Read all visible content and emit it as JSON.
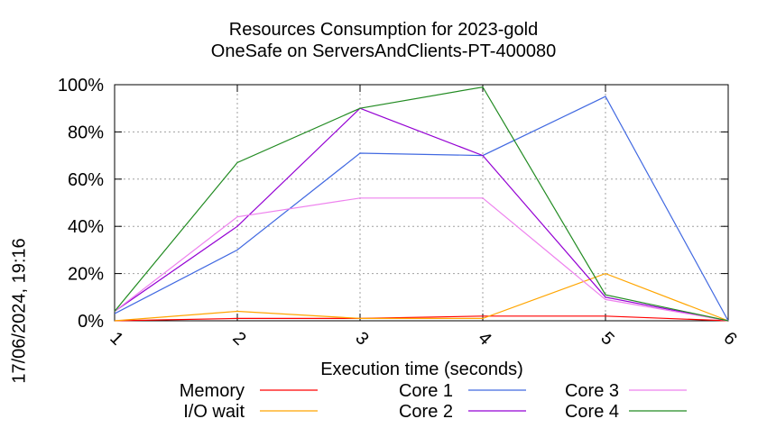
{
  "timestamp": "17/06/2024, 19:16",
  "chart_data": {
    "type": "line",
    "title": "Resources Consumption for 2023-gold",
    "subtitle": "OneSafe on ServersAndClients-PT-400080",
    "xlabel": "Execution time (seconds)",
    "ylabel": "",
    "x": [
      1,
      2,
      3,
      4,
      5,
      6
    ],
    "xlim": [
      1,
      6
    ],
    "ylim": [
      0,
      100
    ],
    "x_ticks": [
      "1",
      "2",
      "3",
      "4",
      "5",
      "6"
    ],
    "y_ticks": [
      "0%",
      "20%",
      "40%",
      "60%",
      "80%",
      "100%"
    ],
    "y_tick_values": [
      0,
      20,
      40,
      60,
      80,
      100
    ],
    "grid": true,
    "legend_position": "bottom",
    "series": [
      {
        "name": "Memory",
        "color": "#ff0000",
        "values": [
          0,
          1,
          1,
          2,
          2,
          0
        ]
      },
      {
        "name": "I/O wait",
        "color": "#ffa500",
        "values": [
          0,
          4,
          1,
          1,
          20,
          0
        ]
      },
      {
        "name": "Core 1",
        "color": "#4169e1",
        "values": [
          3,
          30,
          71,
          70,
          95,
          0
        ]
      },
      {
        "name": "Core 2",
        "color": "#9400d3",
        "values": [
          4,
          40,
          90,
          70,
          10,
          0
        ]
      },
      {
        "name": "Core 3",
        "color": "#ee82ee",
        "values": [
          4,
          44,
          52,
          52,
          9,
          0
        ]
      },
      {
        "name": "Core 4",
        "color": "#228b22",
        "values": [
          4,
          67,
          90,
          99,
          11,
          0
        ]
      }
    ]
  }
}
